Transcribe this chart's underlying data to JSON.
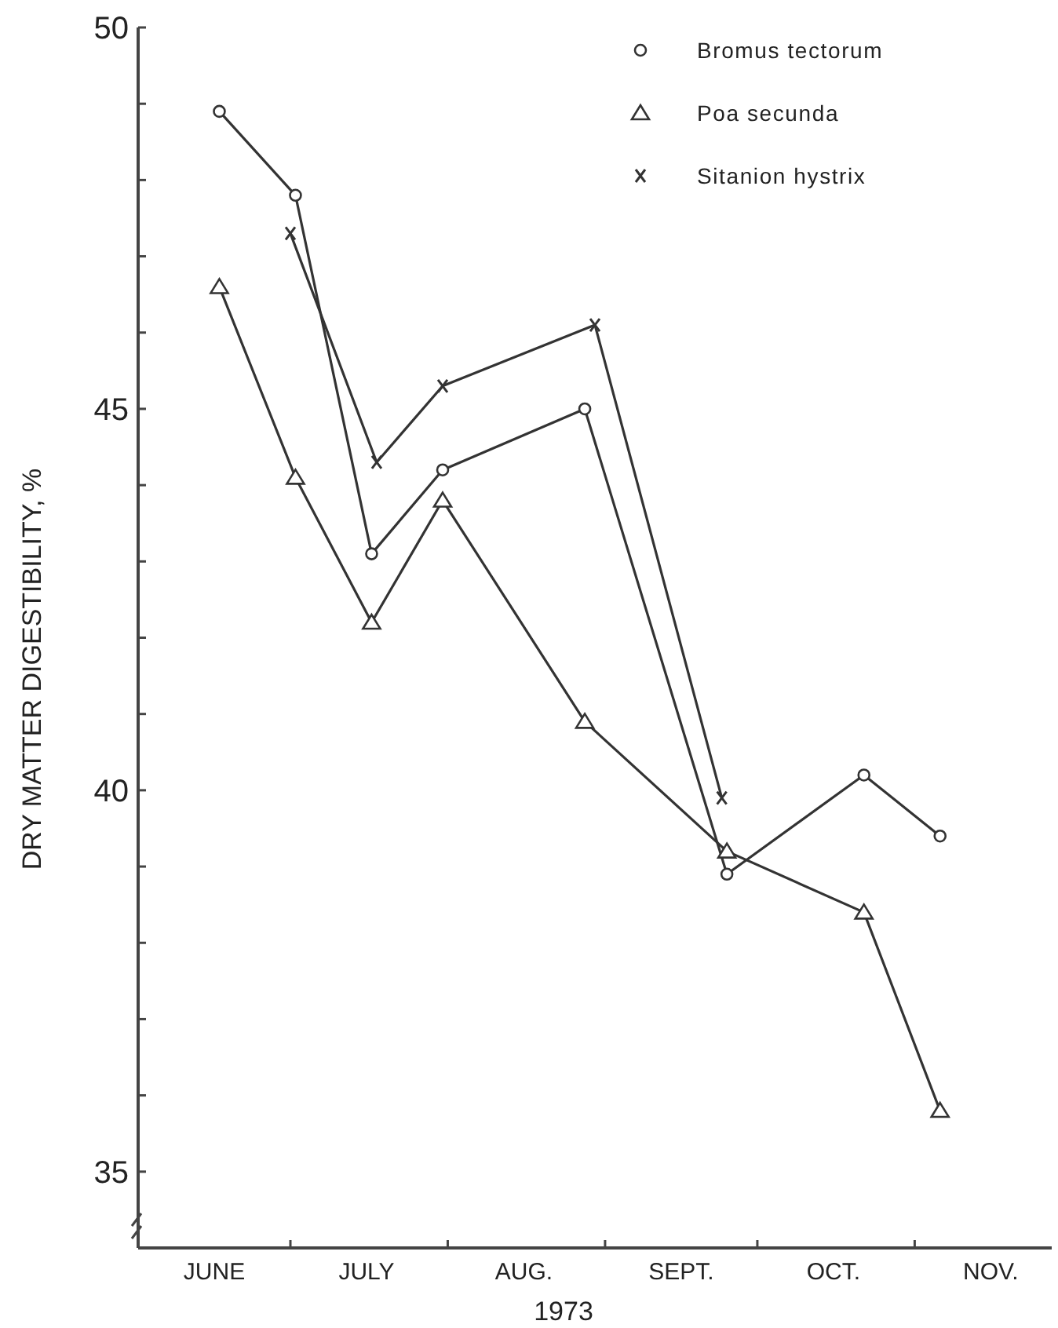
{
  "chart_data": {
    "type": "line",
    "xlabel": "1973",
    "ylabel": "DRY MATTER DIGESTIBILITY, %",
    "x": [
      "1973-06-17",
      "1973-07-02",
      "1973-07-17",
      "1973-07-31",
      "1973-08-28",
      "1973-09-25",
      "1973-10-22",
      "1973-11-06"
    ],
    "series": [
      {
        "name": "Bromus tectorum",
        "color": "#333333",
        "marker": "circle",
        "values": [
          48.9,
          47.8,
          43.1,
          44.2,
          45.0,
          38.9,
          40.2,
          39.4
        ]
      },
      {
        "name": "Poa secunda",
        "color": "#333333",
        "marker": "triangle",
        "values": [
          46.6,
          44.1,
          42.2,
          43.8,
          40.9,
          39.2,
          38.4,
          35.8
        ]
      },
      {
        "name": "Sitanion hystrix",
        "color": "#333333",
        "marker": "cross",
        "x": [
          "1973-07-01",
          "1973-07-18",
          "1973-07-31",
          "1973-08-30",
          "1973-09-24"
        ],
        "values": [
          47.3,
          44.3,
          45.3,
          46.1,
          39.9
        ]
      }
    ],
    "xlim": [
      "1973-06-01",
      "1973-11-28"
    ],
    "xticks": [
      {
        "value": "1973-06-16",
        "label": "JUNE"
      },
      {
        "value": "1973-07-01",
        "label": null
      },
      {
        "value": "1973-07-16",
        "label": "JULY"
      },
      {
        "value": "1973-08-01",
        "label": null
      },
      {
        "value": "1973-08-16",
        "label": "AUG."
      },
      {
        "value": "1973-09-01",
        "label": null
      },
      {
        "value": "1973-09-16",
        "label": "SEPT."
      },
      {
        "value": "1973-10-01",
        "label": null
      },
      {
        "value": "1973-10-16",
        "label": "OCT."
      },
      {
        "value": "1973-11-01",
        "label": null
      },
      {
        "value": "1973-11-16",
        "label": "NOV."
      }
    ],
    "ylim": [
      34,
      50
    ],
    "yticks": [
      35,
      {
        "value": 36,
        "label": null
      },
      {
        "value": 37,
        "label": null
      },
      {
        "value": 38,
        "label": null
      },
      {
        "value": 39,
        "label": null
      },
      40,
      {
        "value": 41,
        "label": null
      },
      {
        "value": 42,
        "label": null
      },
      {
        "value": 43,
        "label": null
      },
      {
        "value": 44,
        "label": null
      },
      45,
      {
        "value": 46,
        "label": null
      },
      {
        "value": 47,
        "label": null
      },
      {
        "value": 48,
        "label": null
      },
      {
        "value": 49,
        "label": null
      },
      50
    ],
    "legend": "top right",
    "line_style": "solid",
    "grid": false
  }
}
